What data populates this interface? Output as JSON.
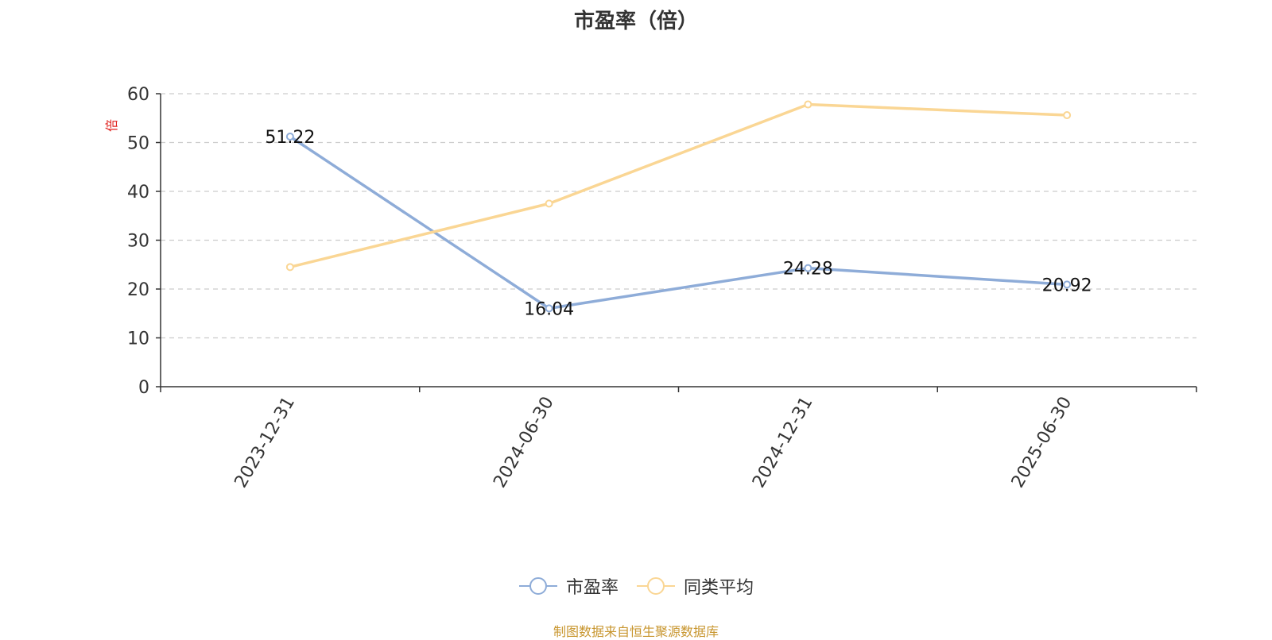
{
  "chart_data": {
    "type": "line",
    "title": "市盈率（倍）",
    "ylabel": "倍",
    "ylim": [
      0,
      60
    ],
    "yticks": [
      "0",
      "10",
      "20",
      "30",
      "40",
      "50",
      "60"
    ],
    "categories": [
      "2023-12-31",
      "2024-06-30",
      "2024-12-31",
      "2025-06-30"
    ],
    "grid": true,
    "legend_position": "bottom-center",
    "series": [
      {
        "name": "市盈率",
        "color": "#8eacd8",
        "values": [
          51.22,
          16.04,
          24.28,
          20.92
        ],
        "labels": [
          "51.22",
          "16.04",
          "24.28",
          "20.92"
        ]
      },
      {
        "name": "同类平均",
        "color": "#fad694",
        "values": [
          24.5,
          37.5,
          57.8,
          55.6
        ]
      }
    ]
  },
  "source_note": "制图数据来自恒生聚源数据库",
  "colors": {
    "axis": "#333333",
    "grid": "#cccccc",
    "ylabel": "#e0221e",
    "source": "#c8962f"
  }
}
